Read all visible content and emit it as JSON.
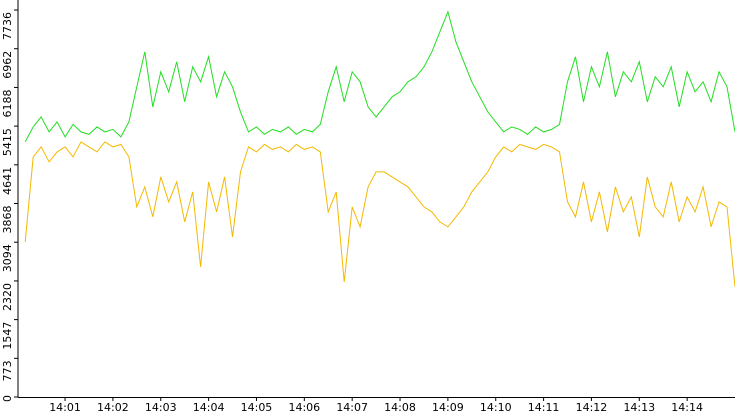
{
  "chart_data": {
    "type": "line",
    "x": [
      "14:00:10",
      "14:00:20",
      "14:00:30",
      "14:00:40",
      "14:00:50",
      "14:01:00",
      "14:01:10",
      "14:01:20",
      "14:01:30",
      "14:01:40",
      "14:01:50",
      "14:02:00",
      "14:02:10",
      "14:02:20",
      "14:02:30",
      "14:02:40",
      "14:02:50",
      "14:03:00",
      "14:03:10",
      "14:03:20",
      "14:03:30",
      "14:03:40",
      "14:03:50",
      "14:04:00",
      "14:04:10",
      "14:04:20",
      "14:04:30",
      "14:04:40",
      "14:04:50",
      "14:05:00",
      "14:05:10",
      "14:05:20",
      "14:05:30",
      "14:05:40",
      "14:05:50",
      "14:06:00",
      "14:06:10",
      "14:06:20",
      "14:06:30",
      "14:06:40",
      "14:06:50",
      "14:07:00",
      "14:07:10",
      "14:07:20",
      "14:07:30",
      "14:07:40",
      "14:07:50",
      "14:08:00",
      "14:08:10",
      "14:08:20",
      "14:08:30",
      "14:08:40",
      "14:08:50",
      "14:09:00",
      "14:09:10",
      "14:09:20",
      "14:09:30",
      "14:09:40",
      "14:09:50",
      "14:10:00",
      "14:10:10",
      "14:10:20",
      "14:10:30",
      "14:10:40",
      "14:10:50",
      "14:11:00",
      "14:11:10",
      "14:11:20",
      "14:11:30",
      "14:11:40",
      "14:11:50",
      "14:12:00",
      "14:12:10",
      "14:12:20",
      "14:12:30",
      "14:12:40",
      "14:12:50",
      "14:13:00",
      "14:13:10",
      "14:13:20",
      "14:13:30",
      "14:13:40",
      "14:13:50",
      "14:14:00",
      "14:14:10",
      "14:14:20",
      "14:14:30",
      "14:14:40",
      "14:14:50",
      "14:15:00"
    ],
    "xlim": [
      "14:00:00",
      "14:15:00"
    ],
    "xticks": [
      "14:01",
      "14:02",
      "14:03",
      "14:04",
      "14:05",
      "14:06",
      "14:07",
      "14:08",
      "14:09",
      "14:10",
      "14:11",
      "14:12",
      "14:13",
      "14:14"
    ],
    "ylim": [
      0,
      7736
    ],
    "yticks": [
      0,
      773,
      1547,
      2320,
      3094,
      3868,
      4641,
      5415,
      6188,
      6962,
      7736
    ],
    "series": [
      {
        "color": "#22dd22",
        "values": [
          5100,
          5400,
          5600,
          5300,
          5500,
          5200,
          5450,
          5300,
          5250,
          5400,
          5300,
          5350,
          5200,
          5500,
          6200,
          6900,
          5800,
          6500,
          6100,
          6700,
          5900,
          6600,
          6300,
          6800,
          6000,
          6500,
          6200,
          5700,
          5300,
          5400,
          5250,
          5350,
          5300,
          5400,
          5250,
          5350,
          5300,
          5450,
          6100,
          6600,
          5900,
          6500,
          6300,
          5800,
          5600,
          5800,
          6000,
          6100,
          6300,
          6400,
          6600,
          6900,
          7300,
          7700,
          7100,
          6700,
          6300,
          6000,
          5700,
          5500,
          5300,
          5400,
          5350,
          5250,
          5400,
          5300,
          5350,
          5450,
          6300,
          6800,
          5900,
          6600,
          6200,
          6900,
          6000,
          6500,
          6300,
          6700,
          5900,
          6400,
          6200,
          6600,
          5800,
          6500,
          6100,
          6300,
          5900,
          6500,
          6200,
          5300
        ]
      },
      {
        "color": "#f5b800",
        "values": [
          3100,
          4800,
          5000,
          4700,
          4900,
          5000,
          4800,
          5100,
          5000,
          4900,
          5100,
          5000,
          5050,
          4800,
          3800,
          4200,
          3600,
          4400,
          3900,
          4300,
          3500,
          4100,
          2600,
          4300,
          3700,
          4400,
          3200,
          4500,
          5000,
          4900,
          5050,
          4950,
          5000,
          4900,
          5050,
          4950,
          5000,
          4900,
          3700,
          4100,
          2300,
          3800,
          3400,
          4200,
          4500,
          4500,
          4400,
          4300,
          4200,
          4000,
          3800,
          3700,
          3500,
          3400,
          3600,
          3800,
          4100,
          4300,
          4500,
          4800,
          5000,
          4900,
          5050,
          5000,
          4950,
          5050,
          5000,
          4900,
          3900,
          3600,
          4300,
          3500,
          4100,
          3300,
          4200,
          3700,
          4000,
          3200,
          4400,
          3800,
          3600,
          4300,
          3500,
          4000,
          3700,
          4200,
          3400,
          3900,
          3800,
          2200
        ]
      }
    ]
  }
}
